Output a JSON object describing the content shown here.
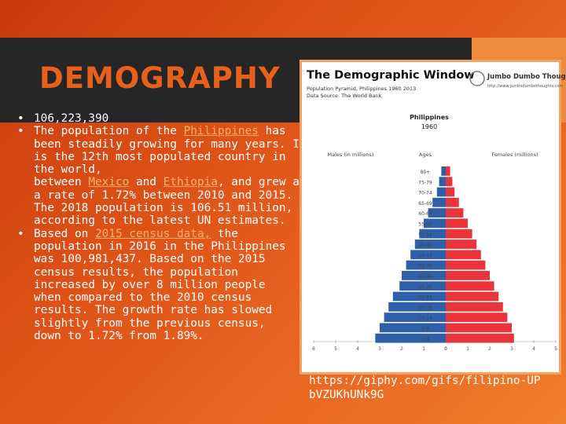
{
  "slide": {
    "title": "DEMOGRAPHY",
    "bullets": [
      [
        "106,223,390"
      ],
      [
        "The population of the ",
        "Philippines",
        " has been steadily growing for many years. It is the 12th most populated country in the world,",
        "between ",
        "Mexico",
        " and ",
        "Ethiopia",
        ", and grew at a rate of 1.72% between 2010 and 2015. The 2018 population is 106.51 million, according to the latest UN estimates."
      ],
      [
        "Based on ",
        "2015 census data,",
        " the population in 2016 in the Philippines was 100,981,437. Based on the 2015 census results, the population increased by over 8 million people when compared to the 2010 census results. The growth rate has slowed slightly from the previous census, down to 1.72% from 1.89%."
      ]
    ],
    "caption": "https://giphy.com/gifs/filipino-UPbVZUKhUNk9G"
  },
  "pyramid": {
    "title": "The Demographic Window",
    "subtitle": "Population Pyramid, Philippines 1960 2013",
    "source": "Data Source: The World Bank",
    "brand": "Jumbo Dumbo Thoughts",
    "brand_url": "http://www.jumbodumbothoughts.com",
    "country": "Philippines",
    "year": "1960",
    "male_label": "Males (in millions)",
    "ages_label": "Ages",
    "female_label": "Females (millions)",
    "ages": [
      "80+",
      "75-79",
      "70-74",
      "65-69",
      "60-64",
      "55-59",
      "50-54",
      "45-49",
      "40-44",
      "35-39",
      "30-34",
      "25-29",
      "20-24",
      "15-19",
      "10-14",
      "5-9",
      "0-4"
    ],
    "male": [
      0.2,
      0.3,
      0.4,
      0.6,
      0.8,
      1.0,
      1.2,
      1.4,
      1.6,
      1.8,
      2.0,
      2.1,
      2.4,
      2.6,
      2.8,
      3.0,
      3.2
    ],
    "female": [
      0.2,
      0.3,
      0.4,
      0.6,
      0.8,
      1.0,
      1.2,
      1.4,
      1.6,
      1.8,
      2.0,
      2.2,
      2.4,
      2.6,
      2.8,
      3.0,
      3.1
    ],
    "male_color": "#2f5fa8",
    "female_color": "#e8343a",
    "male_ticks": [
      6,
      5,
      4,
      3,
      2,
      1,
      0
    ],
    "female_ticks": [
      0,
      1,
      2,
      3,
      4,
      5
    ]
  }
}
